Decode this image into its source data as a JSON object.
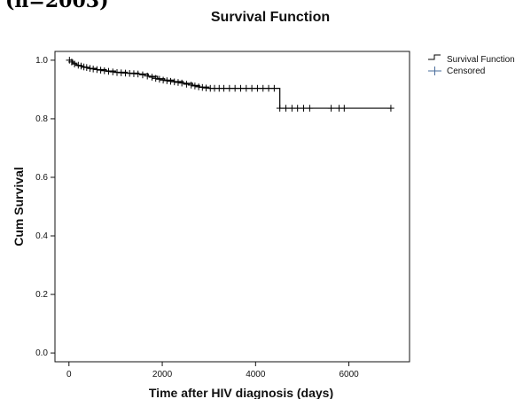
{
  "page": {
    "top_fragment": "(n=2003)"
  },
  "chart_data": {
    "type": "line",
    "title": "Survival Function",
    "xlabel": "Time after HIV diagnosis (days)",
    "ylabel": "Cum Survival",
    "xlim": [
      -300,
      7300
    ],
    "ylim": [
      -0.03,
      1.03
    ],
    "x_ticks": [
      0,
      2000,
      4000,
      6000
    ],
    "y_ticks": [
      0.0,
      0.2,
      0.4,
      0.6,
      0.8,
      1.0
    ],
    "x_tick_labels": [
      "0",
      "2000",
      "4000",
      "6000"
    ],
    "y_tick_labels": [
      "0.0",
      "0.2",
      "0.4",
      "0.6",
      "0.8",
      "1.0"
    ],
    "grid": false,
    "legend_position": "top-right",
    "legend": [
      "Survival Function",
      "Censored"
    ],
    "series": [
      {
        "name": "Survival Function",
        "kind": "step",
        "color": "#000000",
        "x": [
          0,
          80,
          160,
          280,
          420,
          600,
          800,
          1000,
          1250,
          1500,
          1700,
          1900,
          2050,
          2250,
          2450,
          2650,
          2800,
          3000,
          4520,
          6900
        ],
        "y": [
          1.0,
          0.99,
          0.982,
          0.976,
          0.972,
          0.968,
          0.963,
          0.959,
          0.956,
          0.953,
          0.945,
          0.937,
          0.932,
          0.927,
          0.921,
          0.914,
          0.908,
          0.904,
          0.836,
          0.836
        ]
      },
      {
        "name": "Censored",
        "kind": "marker",
        "marker": "plus",
        "color": "#000000",
        "points": [
          [
            10,
            1.0
          ],
          [
            60,
            0.994
          ],
          [
            120,
            0.987
          ],
          [
            200,
            0.983
          ],
          [
            260,
            0.98
          ],
          [
            320,
            0.977
          ],
          [
            380,
            0.975
          ],
          [
            450,
            0.972
          ],
          [
            520,
            0.97
          ],
          [
            600,
            0.968
          ],
          [
            680,
            0.966
          ],
          [
            760,
            0.964
          ],
          [
            850,
            0.962
          ],
          [
            940,
            0.96
          ],
          [
            1030,
            0.958
          ],
          [
            1120,
            0.957
          ],
          [
            1210,
            0.956
          ],
          [
            1300,
            0.955
          ],
          [
            1390,
            0.954
          ],
          [
            1480,
            0.953
          ],
          [
            1580,
            0.95
          ],
          [
            1680,
            0.946
          ],
          [
            1780,
            0.942
          ],
          [
            1860,
            0.938
          ],
          [
            1940,
            0.935
          ],
          [
            2020,
            0.932
          ],
          [
            2100,
            0.93
          ],
          [
            2180,
            0.928
          ],
          [
            2260,
            0.926
          ],
          [
            2340,
            0.924
          ],
          [
            2420,
            0.922
          ],
          [
            2520,
            0.918
          ],
          [
            2620,
            0.915
          ],
          [
            2700,
            0.912
          ],
          [
            2780,
            0.909
          ],
          [
            2860,
            0.907
          ],
          [
            2940,
            0.905
          ],
          [
            3030,
            0.904
          ],
          [
            3120,
            0.904
          ],
          [
            3220,
            0.904
          ],
          [
            3320,
            0.904
          ],
          [
            3440,
            0.904
          ],
          [
            3560,
            0.904
          ],
          [
            3680,
            0.904
          ],
          [
            3800,
            0.904
          ],
          [
            3920,
            0.904
          ],
          [
            4040,
            0.904
          ],
          [
            4160,
            0.904
          ],
          [
            4280,
            0.904
          ],
          [
            4400,
            0.904
          ],
          [
            4520,
            0.836
          ],
          [
            4650,
            0.836
          ],
          [
            4780,
            0.836
          ],
          [
            4900,
            0.836
          ],
          [
            5030,
            0.836
          ],
          [
            5160,
            0.836
          ],
          [
            5620,
            0.836
          ],
          [
            5790,
            0.836
          ],
          [
            5900,
            0.836
          ],
          [
            6900,
            0.836
          ]
        ]
      }
    ]
  }
}
